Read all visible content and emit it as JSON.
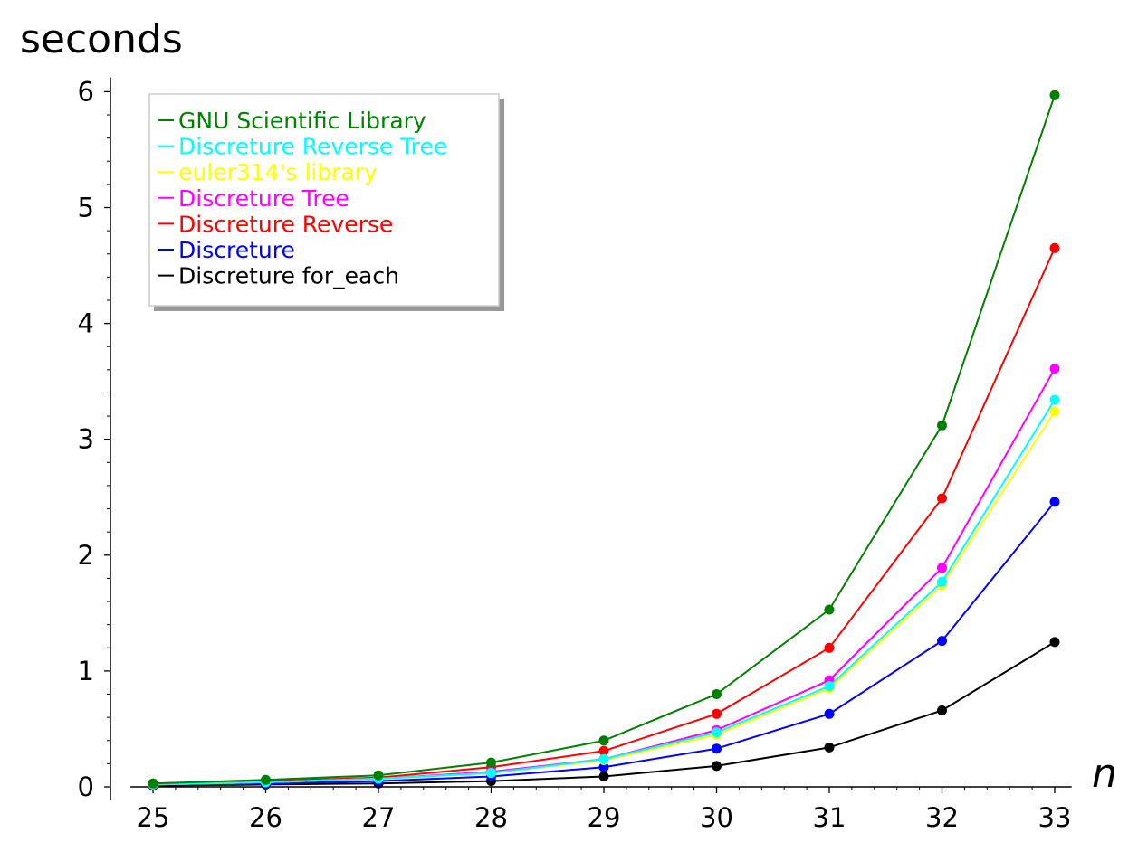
{
  "chart_data": {
    "type": "line",
    "xlabel": "n",
    "ylabel": "seconds",
    "xlim": [
      24.8,
      33.15
    ],
    "ylim": [
      0,
      6.1
    ],
    "x_ticks": [
      25,
      26,
      27,
      28,
      29,
      30,
      31,
      32,
      33
    ],
    "y_ticks": [
      0,
      1,
      2,
      3,
      4,
      5,
      6
    ],
    "x": [
      25,
      26,
      27,
      28,
      29,
      30,
      31,
      32,
      33
    ],
    "legend_position": "upper-left",
    "grid": false,
    "series": [
      {
        "name": "GNU Scientific Library",
        "color": "#008000",
        "values": [
          0.03,
          0.06,
          0.1,
          0.21,
          0.4,
          0.8,
          1.53,
          3.12,
          5.97
        ]
      },
      {
        "name": "Discreture Reverse Tree",
        "color": "#00ffff",
        "values": [
          0.02,
          0.04,
          0.07,
          0.12,
          0.24,
          0.47,
          0.87,
          1.77,
          3.34
        ]
      },
      {
        "name": "euler314's library",
        "color": "#ffff00",
        "values": [
          0.02,
          0.04,
          0.07,
          0.12,
          0.23,
          0.45,
          0.85,
          1.74,
          3.24
        ]
      },
      {
        "name": "Discreture Tree",
        "color": "#ff00ff",
        "values": [
          0.02,
          0.04,
          0.07,
          0.13,
          0.24,
          0.49,
          0.92,
          1.89,
          3.61
        ]
      },
      {
        "name": "Discreture Reverse",
        "color": "#ff0000",
        "values": [
          0.03,
          0.05,
          0.08,
          0.17,
          0.31,
          0.63,
          1.2,
          2.49,
          4.65
        ]
      },
      {
        "name": "Discreture",
        "color": "#0000ff",
        "values": [
          0.02,
          0.03,
          0.05,
          0.09,
          0.17,
          0.33,
          0.63,
          1.26,
          2.46
        ]
      },
      {
        "name": "Discreture for_each",
        "color": "#000000",
        "values": [
          0.01,
          0.02,
          0.03,
          0.05,
          0.09,
          0.18,
          0.34,
          0.66,
          1.25
        ]
      }
    ]
  }
}
